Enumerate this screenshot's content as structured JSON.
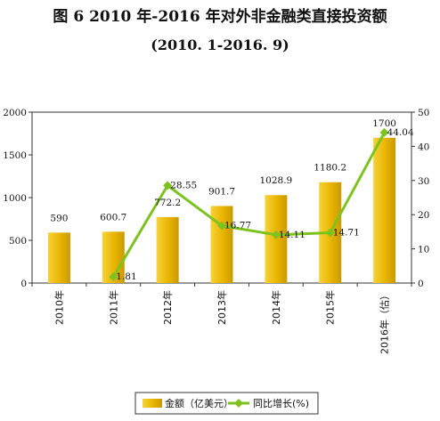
{
  "header": {
    "title": "图 6   2010 年-2016 年对外非金融类直接投资额",
    "subtitle": "(2010. 1-2016. 9)"
  },
  "chart_data": {
    "type": "bar",
    "title": "图 6   2010 年-2016 年对外非金融类直接投资额",
    "subtitle": "(2010. 1-2016. 9)",
    "categories": [
      "2010年",
      "2011年",
      "2012年",
      "2013年",
      "2014年",
      "2015年",
      "2016年（估）"
    ],
    "series": [
      {
        "name": "金额（亿美元）",
        "type": "bar",
        "axis": "left",
        "values": [
          590,
          600.7,
          772.2,
          901.7,
          1028.9,
          1180.2,
          1700
        ],
        "labels": [
          "590",
          "600.7",
          "772.2",
          "901.7",
          "1028.9",
          "1180.2",
          "1700"
        ],
        "color": "#e8b400"
      },
      {
        "name": "同比增长(%)",
        "type": "line",
        "axis": "right",
        "values": [
          null,
          1.81,
          28.55,
          16.77,
          14.11,
          14.71,
          44.04
        ],
        "labels": [
          "",
          "1.81",
          "28.55",
          "16.77",
          "14.11",
          "14.71",
          "44.04"
        ],
        "color": "#7dc21e"
      }
    ],
    "y_left": {
      "min": 0,
      "max": 2000,
      "ticks": [
        "0",
        "500",
        "1000",
        "1500",
        "2000"
      ]
    },
    "y_right": {
      "min": 0,
      "max": 50,
      "ticks": [
        "0",
        "10",
        "20",
        "30",
        "40",
        "50"
      ]
    },
    "grid": false,
    "legend": "bottom"
  }
}
